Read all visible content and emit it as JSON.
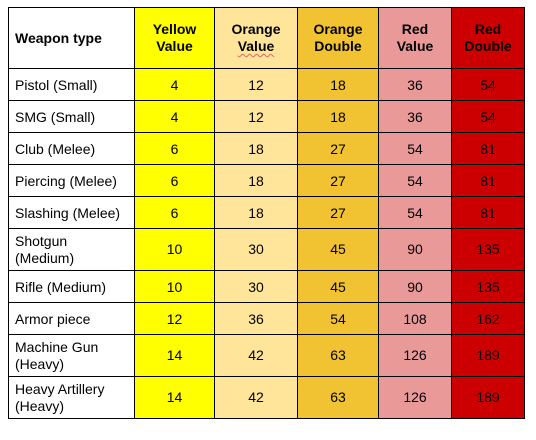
{
  "table": {
    "headers": {
      "weapon": "Weapon type",
      "yellow_value": [
        "Yellow",
        "Value"
      ],
      "orange_value": [
        "Orange",
        "Value"
      ],
      "orange_double": [
        "Orange",
        "Double"
      ],
      "red_value": [
        "Red",
        "Value"
      ],
      "red_double": [
        "Red",
        "Double"
      ]
    },
    "rows": [
      {
        "name": [
          "Pistol (Small)"
        ],
        "yellow": "4",
        "orange": "12",
        "orange_double": "18",
        "red": "36",
        "red_double": "54"
      },
      {
        "name": [
          "SMG (Small)"
        ],
        "yellow": "4",
        "orange": "12",
        "orange_double": "18",
        "red": "36",
        "red_double": "54"
      },
      {
        "name": [
          "Club (Melee)"
        ],
        "yellow": "6",
        "orange": "18",
        "orange_double": "27",
        "red": "54",
        "red_double": "81"
      },
      {
        "name": [
          "Piercing (Melee)"
        ],
        "yellow": "6",
        "orange": "18",
        "orange_double": "27",
        "red": "54",
        "red_double": "81"
      },
      {
        "name": [
          "Slashing (Melee)"
        ],
        "yellow": "6",
        "orange": "18",
        "orange_double": "27",
        "red": "54",
        "red_double": "81"
      },
      {
        "name": [
          "Shotgun",
          "(Medium)"
        ],
        "yellow": "10",
        "orange": "30",
        "orange_double": "45",
        "red": "90",
        "red_double": "135"
      },
      {
        "name": [
          "Rifle (Medium)"
        ],
        "yellow": "10",
        "orange": "30",
        "orange_double": "45",
        "red": "90",
        "red_double": "135"
      },
      {
        "name": [
          "Armor piece"
        ],
        "yellow": "12",
        "orange": "36",
        "orange_double": "54",
        "red": "108",
        "red_double": "162"
      },
      {
        "name": [
          "Machine Gun",
          "(Heavy)"
        ],
        "yellow": "14",
        "orange": "42",
        "orange_double": "63",
        "red": "126",
        "red_double": "189"
      },
      {
        "name": [
          "Heavy Artillery",
          "(Heavy)"
        ],
        "yellow": "14",
        "orange": "42",
        "orange_double": "63",
        "red": "126",
        "red_double": "189"
      }
    ]
  },
  "colors": {
    "weapon_column": "#ffffff",
    "yellow_value": "#ffff00",
    "orange_value": "#ffe599",
    "orange_double": "#f1c232",
    "red_value": "#ea9999",
    "red_double": "#cc0000"
  }
}
